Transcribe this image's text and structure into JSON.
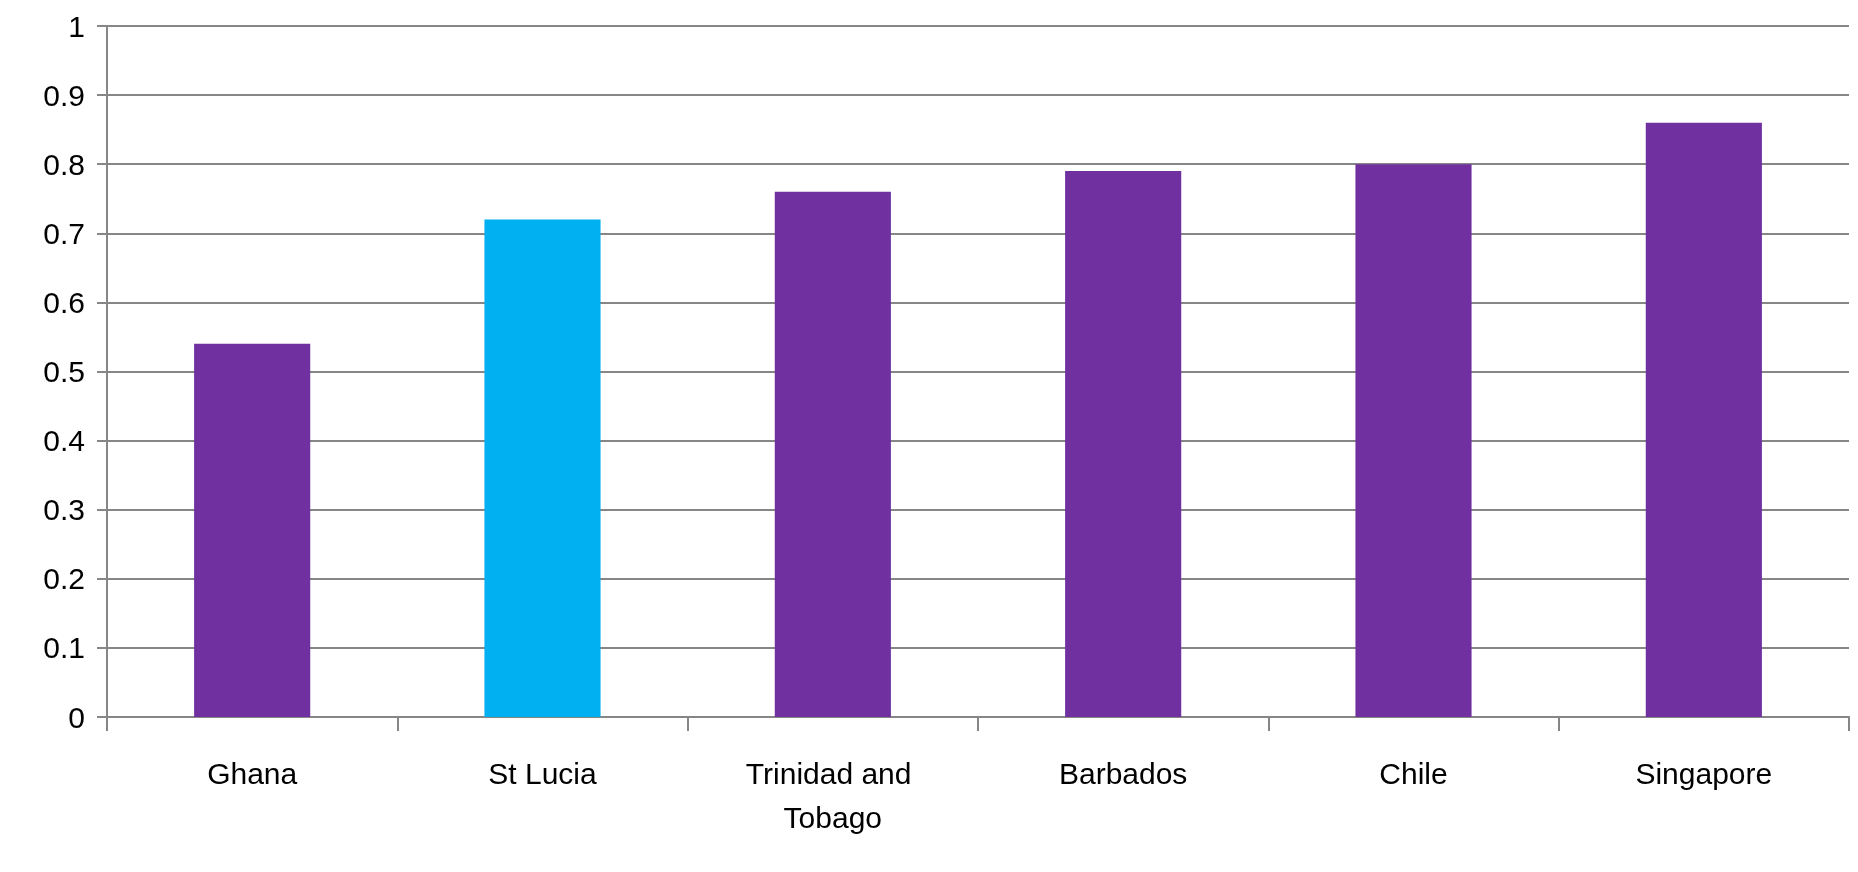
{
  "chart_data": {
    "type": "bar",
    "categories": [
      "Ghana",
      "St Lucia",
      "Trinidad and Tobago",
      "Barbados",
      "Chile",
      "Singapore"
    ],
    "values": [
      0.54,
      0.72,
      0.76,
      0.79,
      0.8,
      0.86
    ],
    "colors": [
      "#7030a0",
      "#00b0f0",
      "#7030a0",
      "#7030a0",
      "#7030a0",
      "#7030a0"
    ],
    "ylim": [
      0,
      1
    ],
    "yticks": [
      0,
      0.1,
      0.2,
      0.3,
      0.4,
      0.5,
      0.6,
      0.7,
      0.8,
      0.9,
      1
    ],
    "grid": "y"
  }
}
